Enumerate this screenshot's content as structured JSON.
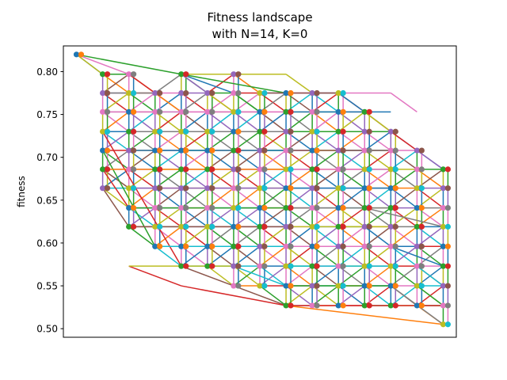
{
  "chart_data": {
    "type": "line",
    "title_line1": "Fitness landscape",
    "title_line2": "with N=14, K=0",
    "xlabel": "",
    "ylabel": "fitness",
    "ylim": [
      0.49,
      0.83
    ],
    "yticks": [
      0.5,
      0.55,
      0.6,
      0.65,
      0.7,
      0.75,
      0.8
    ],
    "ytick_labels": [
      "0.50",
      "0.55",
      "0.60",
      "0.65",
      "0.70",
      "0.75",
      "0.80"
    ],
    "xticks_visible": false,
    "grid": false,
    "layers": [
      {
        "x": 0.0,
        "values": [
          0.82
        ]
      },
      {
        "x": 1.0,
        "values": [
          0.797,
          0.775,
          0.753,
          0.73,
          0.708,
          0.686,
          0.664
        ]
      },
      {
        "x": 2.0,
        "values": [
          0.797,
          0.775,
          0.753,
          0.73,
          0.708,
          0.686,
          0.664,
          0.641,
          0.619
        ]
      },
      {
        "x": 3.0,
        "values": [
          0.775,
          0.753,
          0.73,
          0.708,
          0.686,
          0.664,
          0.641,
          0.619,
          0.596
        ]
      },
      {
        "x": 4.0,
        "values": [
          0.797,
          0.775,
          0.753,
          0.73,
          0.708,
          0.686,
          0.664,
          0.641,
          0.619,
          0.596,
          0.573
        ]
      },
      {
        "x": 5.0,
        "values": [
          0.775,
          0.753,
          0.73,
          0.708,
          0.686,
          0.664,
          0.641,
          0.619,
          0.596,
          0.573
        ]
      },
      {
        "x": 6.0,
        "values": [
          0.797,
          0.775,
          0.753,
          0.73,
          0.708,
          0.686,
          0.664,
          0.641,
          0.619,
          0.596,
          0.573,
          0.55
        ]
      },
      {
        "x": 7.0,
        "values": [
          0.775,
          0.753,
          0.73,
          0.708,
          0.686,
          0.664,
          0.641,
          0.619,
          0.596,
          0.573,
          0.55
        ]
      },
      {
        "x": 8.0,
        "values": [
          0.775,
          0.753,
          0.73,
          0.708,
          0.686,
          0.664,
          0.641,
          0.619,
          0.596,
          0.573,
          0.55,
          0.527
        ]
      },
      {
        "x": 9.0,
        "values": [
          0.775,
          0.753,
          0.73,
          0.708,
          0.686,
          0.664,
          0.641,
          0.619,
          0.596,
          0.573,
          0.55,
          0.527
        ]
      },
      {
        "x": 10.0,
        "values": [
          0.775,
          0.753,
          0.73,
          0.708,
          0.686,
          0.664,
          0.641,
          0.619,
          0.596,
          0.573,
          0.55,
          0.527
        ]
      },
      {
        "x": 11.0,
        "values": [
          0.753,
          0.73,
          0.708,
          0.686,
          0.664,
          0.641,
          0.619,
          0.596,
          0.573,
          0.55,
          0.527
        ]
      },
      {
        "x": 12.0,
        "values": [
          0.73,
          0.708,
          0.686,
          0.664,
          0.641,
          0.619,
          0.596,
          0.573,
          0.55,
          0.527
        ]
      },
      {
        "x": 13.0,
        "values": [
          0.708,
          0.686,
          0.664,
          0.641,
          0.619,
          0.596,
          0.573,
          0.55,
          0.527
        ]
      },
      {
        "x": 14.0,
        "values": [
          0.686,
          0.664,
          0.641,
          0.619,
          0.596,
          0.573,
          0.55,
          0.527,
          0.505
        ]
      }
    ],
    "edges": [
      {
        "from": [
          0,
          0.82
        ],
        "to": [
          4,
          0.797
        ],
        "color": "#2ca02c"
      },
      {
        "from": [
          0,
          0.82
        ],
        "to": [
          1,
          0.797
        ],
        "color": "#bcbd22"
      },
      {
        "from": [
          0,
          0.82
        ],
        "to": [
          2,
          0.797
        ],
        "color": "#e377c2"
      },
      {
        "from": [
          4,
          0.797
        ],
        "to": [
          8,
          0.797
        ],
        "color": "#bcbd22"
      },
      {
        "from": [
          8,
          0.797
        ],
        "to": [
          9,
          0.775
        ],
        "color": "#bcbd22"
      },
      {
        "from": [
          4,
          0.797
        ],
        "to": [
          8,
          0.775
        ],
        "color": "#2ca02c"
      },
      {
        "from": [
          8,
          0.775
        ],
        "to": [
          12,
          0.775
        ],
        "color": "#e377c2"
      },
      {
        "from": [
          12,
          0.775
        ],
        "to": [
          13,
          0.753
        ],
        "color": "#e377c2"
      },
      {
        "from": [
          8,
          0.753
        ],
        "to": [
          12,
          0.753
        ],
        "color": "#1f77b4"
      },
      {
        "from": [
          8,
          0.73
        ],
        "to": [
          12,
          0.73
        ],
        "color": "#2ca02c"
      },
      {
        "from": [
          8,
          0.708
        ],
        "to": [
          12,
          0.708
        ],
        "color": "#8c564b"
      },
      {
        "from": [
          8,
          0.686
        ],
        "to": [
          12,
          0.686
        ],
        "color": "#e377c2"
      },
      {
        "from": [
          8,
          0.664
        ],
        "to": [
          12,
          0.664
        ],
        "color": "#1f77b4"
      },
      {
        "from": [
          8,
          0.641
        ],
        "to": [
          12,
          0.641
        ],
        "color": "#7f7f7f"
      },
      {
        "from": [
          8,
          0.619
        ],
        "to": [
          12,
          0.619
        ],
        "color": "#bcbd22"
      },
      {
        "from": [
          8,
          0.596
        ],
        "to": [
          12,
          0.596
        ],
        "color": "#e377c2"
      },
      {
        "from": [
          8,
          0.573
        ],
        "to": [
          12,
          0.573
        ],
        "color": "#17becf"
      },
      {
        "from": [
          8,
          0.55
        ],
        "to": [
          12,
          0.55
        ],
        "color": "#2ca02c"
      },
      {
        "from": [
          8,
          0.527
        ],
        "to": [
          12,
          0.527
        ],
        "color": "#d62728"
      },
      {
        "from": [
          12,
          0.527
        ],
        "to": [
          14,
          0.527
        ],
        "color": "#d62728"
      },
      {
        "from": [
          8,
          0.527
        ],
        "to": [
          14,
          0.505
        ],
        "color": "#ff7f0e"
      },
      {
        "from": [
          12,
          0.55
        ],
        "to": [
          14,
          0.505
        ],
        "color": "#7f7f7f"
      },
      {
        "from": [
          6,
          0.55
        ],
        "to": [
          8,
          0.527
        ],
        "color": "#8c564b"
      },
      {
        "from": [
          4,
          0.55
        ],
        "to": [
          8,
          0.527
        ],
        "color": "#d62728"
      },
      {
        "from": [
          4,
          0.573
        ],
        "to": [
          6,
          0.55
        ],
        "color": "#8c564b"
      },
      {
        "from": [
          2,
          0.573
        ],
        "to": [
          4,
          0.55
        ],
        "color": "#d62728"
      },
      {
        "from": [
          2,
          0.573
        ],
        "to": [
          6,
          0.573
        ],
        "color": "#bcbd22"
      },
      {
        "from": [
          6,
          0.573
        ],
        "to": [
          8,
          0.55
        ],
        "color": "#17becf"
      },
      {
        "from": [
          1,
          0.664
        ],
        "to": [
          2,
          0.619
        ],
        "color": "#8c564b"
      },
      {
        "from": [
          1,
          0.686
        ],
        "to": [
          2,
          0.641
        ],
        "color": "#d62728"
      },
      {
        "from": [
          1,
          0.708
        ],
        "to": [
          3,
          0.596
        ],
        "color": "#2ca02c"
      },
      {
        "from": [
          1,
          0.73
        ],
        "to": [
          4,
          0.573
        ],
        "color": "#d62728"
      },
      {
        "from": [
          4,
          0.797
        ],
        "to": [
          5,
          0.775
        ],
        "color": "#9467bd"
      },
      {
        "from": [
          4,
          0.797
        ],
        "to": [
          6,
          0.775
        ],
        "color": "#1f77b4"
      },
      {
        "from": [
          5,
          0.775
        ],
        "to": [
          6,
          0.753
        ],
        "color": "#bcbd22"
      },
      {
        "from": [
          6,
          0.775
        ],
        "to": [
          7,
          0.753
        ],
        "color": "#2ca02c"
      },
      {
        "from": [
          10,
          0.775
        ],
        "to": [
          11,
          0.753
        ],
        "color": "#1f77b4"
      },
      {
        "from": [
          11,
          0.753
        ],
        "to": [
          12,
          0.73
        ],
        "color": "#bcbd22"
      },
      {
        "from": [
          12,
          0.73
        ],
        "to": [
          13,
          0.708
        ],
        "color": "#d62728"
      },
      {
        "from": [
          13,
          0.708
        ],
        "to": [
          14,
          0.686
        ],
        "color": "#9467bd"
      },
      {
        "from": [
          13,
          0.55
        ],
        "to": [
          14,
          0.527
        ],
        "color": "#2ca02c"
      },
      {
        "from": [
          13,
          0.573
        ],
        "to": [
          14,
          0.55
        ],
        "color": "#17becf"
      },
      {
        "from": [
          12,
          0.596
        ],
        "to": [
          14,
          0.573
        ],
        "color": "#1f77b4"
      },
      {
        "from": [
          11,
          0.641
        ],
        "to": [
          14,
          0.619
        ],
        "color": "#7f7f7f"
      },
      {
        "from": [
          3,
          0.775
        ],
        "to": [
          4,
          0.753
        ],
        "color": "#ff7f0e"
      },
      {
        "from": [
          2,
          0.797
        ],
        "to": [
          3,
          0.775
        ],
        "color": "#d62728"
      },
      {
        "from": [
          6,
          0.797
        ],
        "to": [
          4,
          0.797
        ],
        "color": "#bcbd22"
      },
      {
        "from": [
          2,
          0.73
        ],
        "to": [
          8,
          0.73
        ],
        "color": "#7f7f7f"
      },
      {
        "from": [
          2,
          0.708
        ],
        "to": [
          8,
          0.708
        ],
        "color": "#1f77b4"
      },
      {
        "from": [
          1,
          0.686
        ],
        "to": [
          8,
          0.686
        ],
        "color": "#ff7f0e"
      },
      {
        "from": [
          2,
          0.664
        ],
        "to": [
          8,
          0.664
        ],
        "color": "#9467bd"
      },
      {
        "from": [
          2,
          0.641
        ],
        "to": [
          8,
          0.641
        ],
        "color": "#2ca02c"
      },
      {
        "from": [
          2,
          0.619
        ],
        "to": [
          8,
          0.619
        ],
        "color": "#8c564b"
      },
      {
        "from": [
          3,
          0.596
        ],
        "to": [
          8,
          0.596
        ],
        "color": "#17becf"
      },
      {
        "from": [
          1,
          0.753
        ],
        "to": [
          8,
          0.753
        ],
        "color": "#e377c2"
      },
      {
        "from": [
          1,
          0.775
        ],
        "to": [
          3,
          0.775
        ],
        "color": "#7f7f7f"
      },
      {
        "from": [
          7,
          0.775
        ],
        "to": [
          10,
          0.775
        ],
        "color": "#8c564b"
      }
    ]
  }
}
